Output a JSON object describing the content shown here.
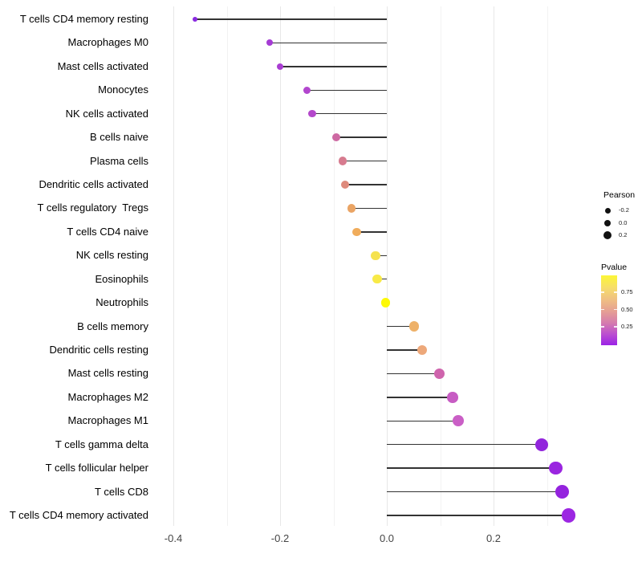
{
  "chart_data": {
    "type": "lollipop",
    "title": "",
    "xlabel": "",
    "ylabel": "",
    "x_range": [
      -0.44,
      0.38
    ],
    "x_ticks": [
      -0.4,
      -0.2,
      0.0,
      0.2
    ],
    "x_tick_labels": [
      "-0.4",
      "-0.2",
      "0.0",
      "0.2"
    ],
    "x_minor_gridlines": [
      -0.3,
      -0.1,
      0.1,
      0.3
    ],
    "grid": "vertical-only",
    "baseline": 0.0,
    "size_encoding": "Pearson correlation",
    "color_encoding": "Pvalue",
    "items": [
      {
        "label": "T cells CD4 memory resting",
        "pearson": -0.36,
        "pvalue": 0.001,
        "color": "#8a2ae0"
      },
      {
        "label": "Macrophages M0",
        "pearson": -0.22,
        "pvalue": 0.08,
        "color": "#a53bd4"
      },
      {
        "label": "Mast cells activated",
        "pearson": -0.2,
        "pvalue": 0.1,
        "color": "#a93dd2"
      },
      {
        "label": "Monocytes",
        "pearson": -0.15,
        "pvalue": 0.15,
        "color": "#b246ce"
      },
      {
        "label": "NK cells activated",
        "pearson": -0.14,
        "pvalue": 0.16,
        "color": "#b448cb"
      },
      {
        "label": "B cells naive",
        "pearson": -0.095,
        "pvalue": 0.3,
        "color": "#cd69a2"
      },
      {
        "label": "Plasma cells",
        "pearson": -0.083,
        "pvalue": 0.38,
        "color": "#d77b8f"
      },
      {
        "label": "Dendritic cells activated",
        "pearson": -0.078,
        "pvalue": 0.45,
        "color": "#de8a7c"
      },
      {
        "label": "T cells regulatory  Tregs",
        "pearson": -0.066,
        "pvalue": 0.55,
        "color": "#eaa464"
      },
      {
        "label": "T cells CD4 naive",
        "pearson": -0.056,
        "pvalue": 0.6,
        "color": "#f0ac5b"
      },
      {
        "label": "NK cells resting",
        "pearson": -0.021,
        "pvalue": 0.85,
        "color": "#f5e24e"
      },
      {
        "label": "Eosinophils",
        "pearson": -0.018,
        "pvalue": 0.87,
        "color": "#f8ea47"
      },
      {
        "label": "Neutrophils",
        "pearson": -0.002,
        "pvalue": 0.99,
        "color": "#fdf906"
      },
      {
        "label": "B cells memory",
        "pearson": 0.051,
        "pvalue": 0.62,
        "color": "#eeb168"
      },
      {
        "label": "Dendritic cells resting",
        "pearson": 0.066,
        "pvalue": 0.55,
        "color": "#eda87a"
      },
      {
        "label": "Mast cells resting",
        "pearson": 0.098,
        "pvalue": 0.32,
        "color": "#cf64ad"
      },
      {
        "label": "Macrophages M2",
        "pearson": 0.123,
        "pvalue": 0.22,
        "color": "#c75cc3"
      },
      {
        "label": "Macrophages M1",
        "pearson": 0.134,
        "pvalue": 0.23,
        "color": "#ca5fc6"
      },
      {
        "label": "T cells gamma delta",
        "pearson": 0.29,
        "pvalue": 0.005,
        "color": "#9225dc"
      },
      {
        "label": "T cells follicular helper",
        "pearson": 0.317,
        "pvalue": 0.004,
        "color": "#9a25e0"
      },
      {
        "label": "T cells CD8",
        "pearson": 0.328,
        "pvalue": 0.003,
        "color": "#9423de"
      },
      {
        "label": "T cells CD4 memory activated",
        "pearson": 0.341,
        "pvalue": 0.002,
        "color": "#9c27e2"
      }
    ]
  },
  "legend": {
    "pearson": {
      "title": "Pearson",
      "entries": [
        {
          "label": "-0.2",
          "value": -0.2
        },
        {
          "label": "0.0",
          "value": 0.0
        },
        {
          "label": "0.2",
          "value": 0.2
        }
      ]
    },
    "pvalue": {
      "title": "Pvalue",
      "ticks": [
        "0.75",
        "0.50",
        "0.25"
      ],
      "gradient_top_color": "#fcf636",
      "gradient_mid_color": "#e59e95",
      "gradient_bottom_color": "#9b22e6"
    }
  },
  "colors": {
    "stem": "#333333",
    "gridline_major": "#e7e7e7",
    "gridline_minor": "#f2f2f2",
    "legend_dot": "#111111"
  }
}
